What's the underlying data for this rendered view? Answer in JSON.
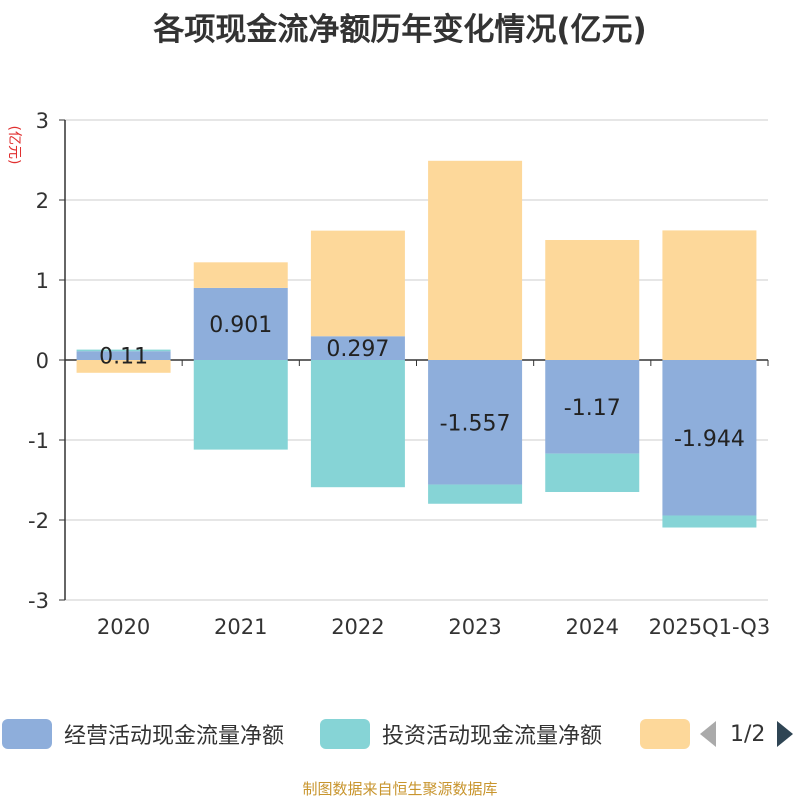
{
  "title": "各项现金流净额历年变化情况(亿元)",
  "source": "制图数据来自恒生聚源数据库",
  "chart_data": {
    "type": "bar",
    "stacked": true,
    "title": "各项现金流净额历年变化情况(亿元)",
    "ylabel": "(亿元)",
    "ylim": [
      -3,
      3
    ],
    "yticks": [
      3,
      2,
      1,
      0,
      -1,
      -2,
      -3
    ],
    "categories": [
      "2020",
      "2021",
      "2022",
      "2023",
      "2024",
      "2025Q1-Q3"
    ],
    "grid": true,
    "legend_position": "bottom",
    "series": [
      {
        "name": "经营活动现金流量净额",
        "color": "#8eaedb",
        "values": [
          0.11,
          0.901,
          0.297,
          -1.557,
          -1.17,
          -1.944
        ],
        "labeled": true
      },
      {
        "name": "投资活动现金流量净额",
        "color": "#86d4d6",
        "values": [
          0.02,
          -1.12,
          -1.59,
          -0.24,
          -0.48,
          -0.15
        ],
        "labeled": false
      },
      {
        "name": "",
        "color": "#fdd89a",
        "values": [
          -0.16,
          0.32,
          1.32,
          2.49,
          1.5,
          1.62
        ],
        "labeled": false
      }
    ]
  },
  "legend": {
    "items": [
      {
        "label": "经营活动现金流量净额",
        "color": "#8eaedb"
      },
      {
        "label": "投资活动现金流量净额",
        "color": "#86d4d6"
      },
      {
        "label": "",
        "color": "#fdd89a"
      }
    ],
    "page_text": "1/2"
  }
}
